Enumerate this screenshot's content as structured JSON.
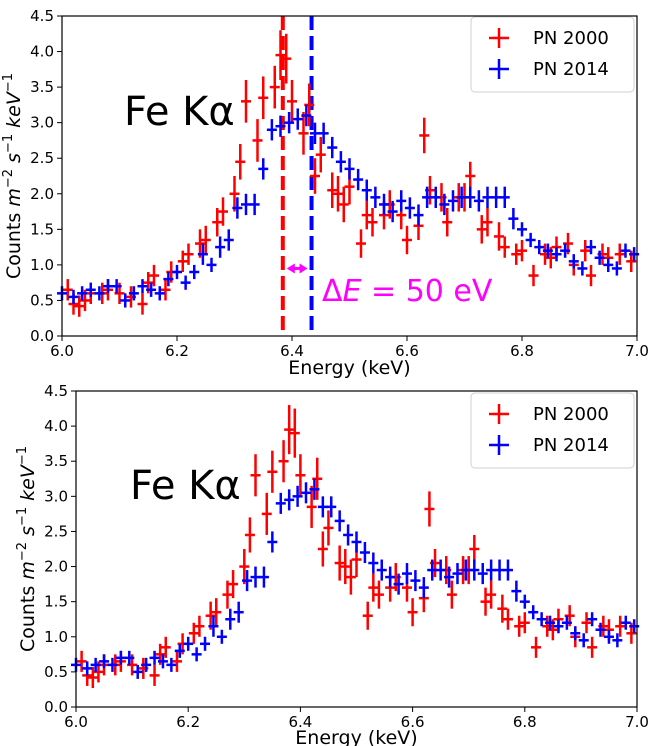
{
  "colors": {
    "series_2000": "#ff0000",
    "series_2014": "#0000ff",
    "annotation": "#ff00ff"
  },
  "panels": [
    {
      "annotation_line_label": "Fe Kα",
      "delta_label_prefix": "Δ",
      "delta_label_var": "E",
      "delta_label_rest": " = 50 eV"
    },
    {
      "annotation_line_label": "Fe Kα"
    }
  ],
  "chart_data": [
    {
      "type": "scatter",
      "title": "",
      "xlabel": "Energy (keV)",
      "ylabel_parts": [
        "Counts ",
        "m",
        "−2",
        " ",
        "s",
        "−1",
        " ",
        "keV",
        "−1"
      ],
      "xlim": [
        6.0,
        7.0
      ],
      "ylim": [
        0.0,
        4.5
      ],
      "xticks": [
        "6.0",
        "6.2",
        "6.4",
        "6.6",
        "6.8",
        "7.0"
      ],
      "yticks": [
        "0.0",
        "0.5",
        "1.0",
        "1.5",
        "2.0",
        "2.5",
        "3.0",
        "3.5",
        "4.0",
        "4.5"
      ],
      "legend": {
        "position": "top-right",
        "entries": [
          "PN 2000",
          "PN 2014"
        ]
      },
      "grid": false,
      "vlines": [
        {
          "x": 6.384,
          "color": "red",
          "style": "dashed"
        },
        {
          "x": 6.434,
          "color": "blue",
          "style": "dashed"
        }
      ],
      "delta_arrow": {
        "x_from": 6.384,
        "x_to": 6.434,
        "y": 0.95
      },
      "series": [
        {
          "name": "PN 2000",
          "x": [
            6.01,
            6.02,
            6.03,
            6.04,
            6.05,
            6.07,
            6.08,
            6.1,
            6.12,
            6.14,
            6.15,
            6.16,
            6.18,
            6.19,
            6.21,
            6.22,
            6.24,
            6.25,
            6.27,
            6.28,
            6.3,
            6.31,
            6.32,
            6.34,
            6.35,
            6.37,
            6.38,
            6.39,
            6.4,
            6.42,
            6.43,
            6.44,
            6.45,
            6.47,
            6.48,
            6.49,
            6.5,
            6.52,
            6.53,
            6.54,
            6.56,
            6.57,
            6.59,
            6.6,
            6.62,
            6.63,
            6.64,
            6.66,
            6.67,
            6.69,
            6.7,
            6.71,
            6.73,
            6.74,
            6.76,
            6.77,
            6.79,
            6.8,
            6.82,
            6.84,
            6.85,
            6.86,
            6.88,
            6.89,
            6.91,
            6.92,
            6.94,
            6.95,
            6.97,
            6.99
          ],
          "y": [
            0.65,
            0.45,
            0.42,
            0.5,
            0.6,
            0.6,
            0.65,
            0.6,
            0.55,
            0.45,
            0.75,
            0.85,
            0.65,
            0.9,
            1.05,
            1.15,
            1.3,
            1.35,
            1.6,
            1.75,
            2.0,
            2.45,
            3.3,
            2.75,
            3.35,
            3.5,
            3.95,
            3.9,
            3.3,
            2.85,
            3.25,
            2.25,
            2.55,
            2.05,
            2.0,
            1.85,
            2.1,
            1.3,
            1.7,
            1.6,
            1.7,
            1.85,
            1.7,
            1.35,
            1.55,
            2.82,
            2.05,
            1.95,
            1.6,
            1.95,
            1.95,
            2.25,
            1.5,
            1.6,
            1.4,
            1.25,
            1.15,
            1.2,
            0.85,
            1.15,
            1.1,
            1.25,
            1.3,
            1.0,
            1.2,
            0.85,
            1.15,
            1.1,
            1.15,
            1.05
          ],
          "yerr": [
            0.15,
            0.15,
            0.15,
            0.15,
            0.15,
            0.15,
            0.15,
            0.15,
            0.15,
            0.15,
            0.15,
            0.15,
            0.15,
            0.15,
            0.15,
            0.15,
            0.2,
            0.2,
            0.2,
            0.2,
            0.25,
            0.25,
            0.3,
            0.3,
            0.3,
            0.3,
            0.35,
            0.35,
            0.3,
            0.3,
            0.3,
            0.25,
            0.25,
            0.25,
            0.25,
            0.25,
            0.25,
            0.2,
            0.2,
            0.2,
            0.2,
            0.2,
            0.2,
            0.2,
            0.2,
            0.25,
            0.2,
            0.2,
            0.2,
            0.2,
            0.2,
            0.2,
            0.2,
            0.2,
            0.2,
            0.15,
            0.15,
            0.15,
            0.15,
            0.15,
            0.15,
            0.15,
            0.15,
            0.15,
            0.15,
            0.15,
            0.15,
            0.15,
            0.15,
            0.15
          ]
        },
        {
          "name": "PN 2014",
          "x": [
            6.0,
            6.02,
            6.035,
            6.05,
            6.065,
            6.08,
            6.095,
            6.11,
            6.125,
            6.14,
            6.155,
            6.17,
            6.185,
            6.2,
            6.215,
            6.23,
            6.245,
            6.26,
            6.275,
            6.29,
            6.305,
            6.32,
            6.335,
            6.35,
            6.365,
            6.38,
            6.395,
            6.41,
            6.425,
            6.44,
            6.455,
            6.47,
            6.485,
            6.5,
            6.515,
            6.53,
            6.545,
            6.56,
            6.575,
            6.59,
            6.605,
            6.62,
            6.635,
            6.65,
            6.665,
            6.68,
            6.695,
            6.71,
            6.725,
            6.74,
            6.755,
            6.77,
            6.785,
            6.8,
            6.815,
            6.83,
            6.845,
            6.86,
            6.875,
            6.89,
            6.905,
            6.92,
            6.935,
            6.95,
            6.965,
            6.98,
            6.995
          ],
          "y": [
            0.6,
            0.55,
            0.6,
            0.65,
            0.6,
            0.7,
            0.7,
            0.5,
            0.6,
            0.7,
            0.65,
            0.6,
            0.8,
            0.9,
            0.75,
            0.9,
            1.15,
            1.0,
            1.25,
            1.35,
            1.8,
            1.85,
            1.85,
            2.35,
            2.9,
            2.95,
            3.0,
            3.05,
            3.1,
            2.85,
            2.85,
            2.65,
            2.45,
            2.35,
            2.2,
            2.05,
            1.95,
            1.85,
            1.75,
            1.9,
            1.8,
            1.7,
            1.95,
            1.95,
            1.85,
            1.9,
            1.95,
            1.95,
            1.9,
            1.95,
            1.95,
            1.95,
            1.65,
            1.5,
            1.35,
            1.25,
            1.2,
            1.15,
            1.2,
            1.05,
            0.95,
            1.25,
            1.1,
            1.0,
            0.95,
            1.2,
            1.15
          ],
          "yerr": [
            0.1,
            0.1,
            0.1,
            0.1,
            0.1,
            0.1,
            0.1,
            0.1,
            0.1,
            0.1,
            0.1,
            0.1,
            0.1,
            0.1,
            0.1,
            0.1,
            0.15,
            0.1,
            0.15,
            0.15,
            0.15,
            0.15,
            0.15,
            0.15,
            0.15,
            0.15,
            0.15,
            0.15,
            0.15,
            0.15,
            0.15,
            0.15,
            0.15,
            0.15,
            0.15,
            0.15,
            0.15,
            0.15,
            0.15,
            0.15,
            0.15,
            0.15,
            0.15,
            0.15,
            0.15,
            0.15,
            0.15,
            0.15,
            0.15,
            0.15,
            0.15,
            0.15,
            0.15,
            0.1,
            0.1,
            0.1,
            0.1,
            0.1,
            0.1,
            0.1,
            0.1,
            0.1,
            0.1,
            0.1,
            0.1,
            0.1,
            0.1
          ]
        }
      ]
    },
    {
      "type": "scatter",
      "title": "",
      "xlabel": "Energy (keV)",
      "ylabel_parts": [
        "Counts ",
        "m",
        "−2",
        " ",
        "s",
        "−1",
        " ",
        "keV",
        "−1"
      ],
      "xlim": [
        6.0,
        7.0
      ],
      "ylim": [
        0.0,
        4.5
      ],
      "xticks": [
        "6.0",
        "6.2",
        "6.4",
        "6.6",
        "6.8",
        "7.0"
      ],
      "yticks": [
        "0.0",
        "0.5",
        "1.0",
        "1.5",
        "2.0",
        "2.5",
        "3.0",
        "3.5",
        "4.0",
        "4.5"
      ],
      "legend": {
        "position": "top-right",
        "entries": [
          "PN 2000",
          "PN 2014"
        ]
      },
      "grid": false,
      "series": [
        {
          "name": "PN 2000",
          "x": [
            6.01,
            6.02,
            6.03,
            6.04,
            6.05,
            6.07,
            6.08,
            6.1,
            6.12,
            6.14,
            6.15,
            6.16,
            6.18,
            6.19,
            6.21,
            6.22,
            6.24,
            6.25,
            6.27,
            6.28,
            6.3,
            6.31,
            6.32,
            6.34,
            6.35,
            6.37,
            6.38,
            6.39,
            6.4,
            6.42,
            6.43,
            6.44,
            6.45,
            6.47,
            6.48,
            6.49,
            6.5,
            6.52,
            6.53,
            6.54,
            6.56,
            6.57,
            6.59,
            6.6,
            6.62,
            6.63,
            6.64,
            6.66,
            6.67,
            6.69,
            6.7,
            6.71,
            6.73,
            6.74,
            6.76,
            6.77,
            6.79,
            6.8,
            6.82,
            6.84,
            6.85,
            6.86,
            6.88,
            6.89,
            6.91,
            6.92,
            6.94,
            6.95,
            6.97,
            6.99
          ],
          "y": [
            0.65,
            0.45,
            0.42,
            0.5,
            0.6,
            0.6,
            0.65,
            0.6,
            0.55,
            0.45,
            0.75,
            0.85,
            0.65,
            0.9,
            1.05,
            1.15,
            1.3,
            1.35,
            1.6,
            1.75,
            2.0,
            2.45,
            3.3,
            2.75,
            3.35,
            3.5,
            3.95,
            3.9,
            3.3,
            2.85,
            3.25,
            2.25,
            2.55,
            2.05,
            2.0,
            1.85,
            2.1,
            1.3,
            1.7,
            1.6,
            1.7,
            1.85,
            1.7,
            1.35,
            1.55,
            2.82,
            2.05,
            1.95,
            1.6,
            1.95,
            1.95,
            2.25,
            1.5,
            1.6,
            1.4,
            1.25,
            1.15,
            1.2,
            0.85,
            1.15,
            1.1,
            1.25,
            1.3,
            1.0,
            1.2,
            0.85,
            1.15,
            1.1,
            1.15,
            1.05
          ],
          "yerr": [
            0.15,
            0.15,
            0.15,
            0.15,
            0.15,
            0.15,
            0.15,
            0.15,
            0.15,
            0.15,
            0.15,
            0.15,
            0.15,
            0.15,
            0.15,
            0.15,
            0.2,
            0.2,
            0.2,
            0.2,
            0.25,
            0.25,
            0.3,
            0.3,
            0.3,
            0.3,
            0.35,
            0.35,
            0.3,
            0.3,
            0.3,
            0.25,
            0.25,
            0.25,
            0.25,
            0.25,
            0.25,
            0.2,
            0.2,
            0.2,
            0.2,
            0.2,
            0.2,
            0.2,
            0.2,
            0.25,
            0.2,
            0.2,
            0.2,
            0.2,
            0.2,
            0.2,
            0.2,
            0.2,
            0.2,
            0.15,
            0.15,
            0.15,
            0.15,
            0.15,
            0.15,
            0.15,
            0.15,
            0.15,
            0.15,
            0.15,
            0.15,
            0.15,
            0.15,
            0.15
          ]
        },
        {
          "name": "PN 2014",
          "x": [
            6.0,
            6.02,
            6.035,
            6.05,
            6.065,
            6.08,
            6.095,
            6.11,
            6.125,
            6.14,
            6.155,
            6.17,
            6.185,
            6.2,
            6.215,
            6.23,
            6.245,
            6.26,
            6.275,
            6.29,
            6.305,
            6.32,
            6.335,
            6.35,
            6.365,
            6.38,
            6.395,
            6.41,
            6.425,
            6.44,
            6.455,
            6.47,
            6.485,
            6.5,
            6.515,
            6.53,
            6.545,
            6.56,
            6.575,
            6.59,
            6.605,
            6.62,
            6.635,
            6.65,
            6.665,
            6.68,
            6.695,
            6.71,
            6.725,
            6.74,
            6.755,
            6.77,
            6.785,
            6.8,
            6.815,
            6.83,
            6.845,
            6.86,
            6.875,
            6.89,
            6.905,
            6.92,
            6.935,
            6.95,
            6.965,
            6.98,
            6.995
          ],
          "y": [
            0.6,
            0.55,
            0.6,
            0.65,
            0.6,
            0.7,
            0.7,
            0.5,
            0.6,
            0.7,
            0.65,
            0.6,
            0.8,
            0.9,
            0.75,
            0.9,
            1.15,
            1.0,
            1.25,
            1.35,
            1.8,
            1.85,
            1.85,
            2.35,
            2.9,
            2.95,
            3.0,
            3.05,
            3.1,
            2.85,
            2.85,
            2.65,
            2.45,
            2.35,
            2.2,
            2.05,
            1.95,
            1.85,
            1.75,
            1.9,
            1.8,
            1.7,
            1.95,
            1.95,
            1.85,
            1.9,
            1.95,
            1.95,
            1.9,
            1.95,
            1.95,
            1.95,
            1.65,
            1.5,
            1.35,
            1.25,
            1.2,
            1.15,
            1.2,
            1.05,
            0.95,
            1.25,
            1.1,
            1.0,
            0.95,
            1.2,
            1.15
          ],
          "yerr": [
            0.1,
            0.1,
            0.1,
            0.1,
            0.1,
            0.1,
            0.1,
            0.1,
            0.1,
            0.1,
            0.1,
            0.1,
            0.1,
            0.1,
            0.1,
            0.1,
            0.15,
            0.1,
            0.15,
            0.15,
            0.15,
            0.15,
            0.15,
            0.15,
            0.15,
            0.15,
            0.15,
            0.15,
            0.15,
            0.15,
            0.15,
            0.15,
            0.15,
            0.15,
            0.15,
            0.15,
            0.15,
            0.15,
            0.15,
            0.15,
            0.15,
            0.15,
            0.15,
            0.15,
            0.15,
            0.15,
            0.15,
            0.15,
            0.15,
            0.15,
            0.15,
            0.15,
            0.15,
            0.1,
            0.1,
            0.1,
            0.1,
            0.1,
            0.1,
            0.1,
            0.1,
            0.1,
            0.1,
            0.1,
            0.1,
            0.1,
            0.1
          ]
        }
      ]
    }
  ]
}
